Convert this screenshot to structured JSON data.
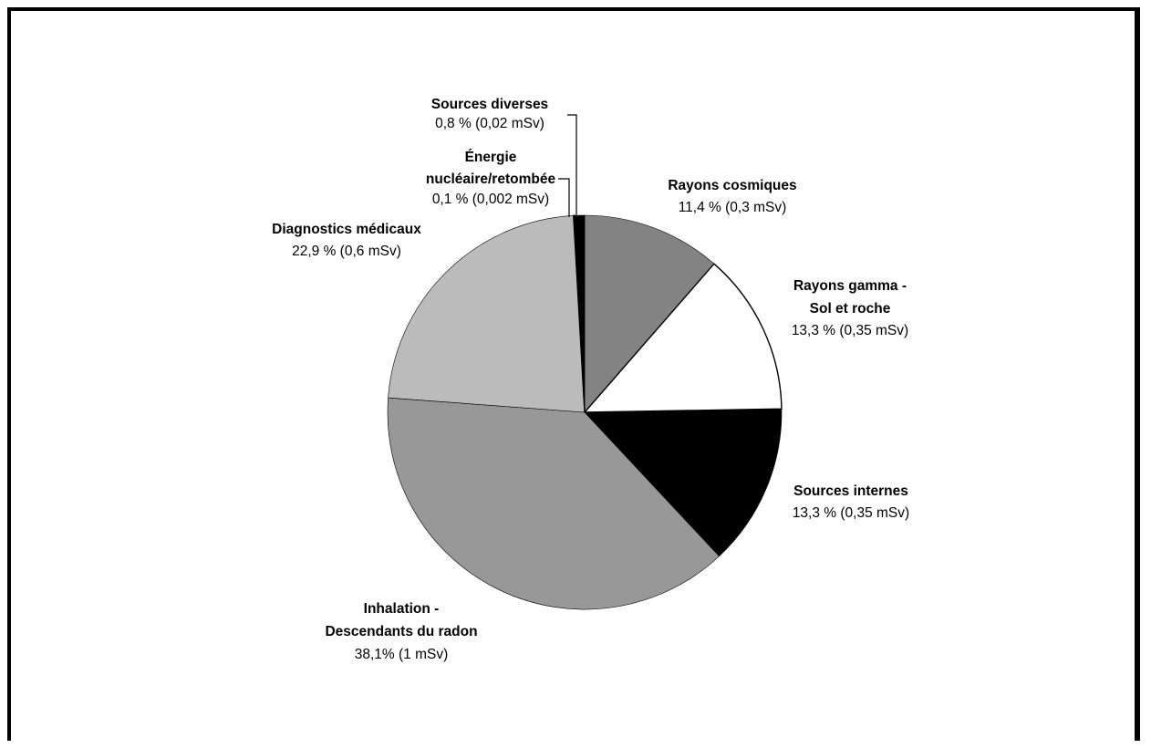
{
  "chart_data": {
    "type": "pie",
    "title": "",
    "slices": [
      {
        "key": "rayons_cosmiques",
        "name": "Rayons cosmiques",
        "percent": 11.4,
        "dose_msv": 0.3,
        "value_label": "11,4 %  (0,3 mSv)",
        "color": "#838383"
      },
      {
        "key": "rayons_gamma",
        "name": "Rayons gamma - Sol et roche",
        "name_lines": [
          "Rayons gamma -",
          "Sol et roche"
        ],
        "percent": 13.3,
        "dose_msv": 0.35,
        "value_label": "13,3  %  (0,35 mSv)",
        "color": "#ffffff"
      },
      {
        "key": "sources_internes",
        "name": "Sources internes",
        "percent": 13.3,
        "dose_msv": 0.35,
        "value_label": "13,3 %  (0,35 mSv)",
        "color": "#000000"
      },
      {
        "key": "inhalation",
        "name": "Inhalation - Descendants du radon",
        "name_lines": [
          "Inhalation -",
          "Descendants du radon"
        ],
        "percent": 38.1,
        "dose_msv": 1,
        "value_label": "38,1%  (1 mSv)",
        "color": "#989898"
      },
      {
        "key": "diagnostics",
        "name": "Diagnostics médicaux",
        "percent": 22.9,
        "dose_msv": 0.6,
        "value_label": "22,9 %  (0,6 mSv)",
        "color": "#bbbbbb"
      },
      {
        "key": "energie_nucleaire",
        "name": "Énergie nucléaire/retombée",
        "name_lines": [
          "Énergie",
          "nucléaire/retombée"
        ],
        "percent": 0.1,
        "dose_msv": 0.002,
        "value_label": "0,1 %  (0,002 mSv)",
        "color": "#ffffff"
      },
      {
        "key": "sources_diverses",
        "name": "Sources diverses",
        "percent": 0.8,
        "dose_msv": 0.02,
        "value_label": "0,8 %  (0,02 mSv)",
        "color": "#000000"
      }
    ]
  }
}
